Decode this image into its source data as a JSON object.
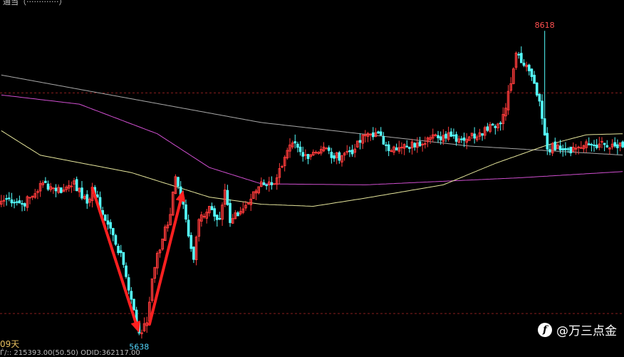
{
  "header": {
    "title_fragment": "通当（·············）"
  },
  "footer": {
    "period_label": "09天",
    "volume_text": "Ѓ/::  215393.00(50.50)  ODID:362117.00"
  },
  "watermark": {
    "logo_letter": "f",
    "text": "@万三点金"
  },
  "colors": {
    "background": "#000000",
    "up_candle": "#ff3b3b",
    "down_candle": "#54ffff",
    "ma_short": "#e6e69c",
    "ma_mid": "#d04fd0",
    "ma_long": "#a8a8a8",
    "ref_line": "#8a1e1e",
    "arrow": "#ff2020",
    "low_label": "#54d8ff",
    "high_label": "#ff5050"
  },
  "chart_data": {
    "type": "candlestick",
    "title": "",
    "xlabel": "",
    "ylabel": "",
    "ylim": [
      5585,
      8780
    ],
    "grid": false,
    "annotations": {
      "low": {
        "index": 53,
        "value": 5638,
        "label": "5638"
      },
      "high": {
        "index": 209,
        "value": 8618,
        "label": "8618"
      },
      "arrows": [
        {
          "from_index": 35,
          "from_value": 7080,
          "to_index": 53,
          "to_value": 5660
        },
        {
          "from_index": 57,
          "from_value": 5745,
          "to_index": 70,
          "to_value": 7060
        }
      ]
    },
    "reference_lines": [
      8010,
      5850
    ],
    "ma_lines": [
      {
        "key": "ma_long",
        "color": "#a8a8a8",
        "points": [
          [
            0,
            8185
          ],
          [
            100,
            7720
          ],
          [
            180,
            7490
          ],
          [
            240,
            7400
          ],
          [
            239,
            7400
          ]
        ]
      },
      {
        "key": "ma_mid",
        "color": "#d04fd0",
        "points": [
          [
            0,
            7990
          ],
          [
            30,
            7900
          ],
          [
            60,
            7610
          ],
          [
            80,
            7280
          ],
          [
            100,
            7120
          ],
          [
            140,
            7110
          ],
          [
            200,
            7180
          ],
          [
            239,
            7240
          ]
        ]
      },
      {
        "key": "ma_short",
        "color": "#e6e69c",
        "points": [
          [
            0,
            7640
          ],
          [
            15,
            7400
          ],
          [
            50,
            7230
          ],
          [
            80,
            6990
          ],
          [
            100,
            6920
          ],
          [
            120,
            6900
          ],
          [
            140,
            6980
          ],
          [
            170,
            7110
          ],
          [
            190,
            7320
          ],
          [
            210,
            7500
          ],
          [
            225,
            7600
          ],
          [
            239,
            7610
          ]
        ]
      }
    ],
    "anchors": [
      [
        0,
        6950
      ],
      [
        3,
        6980
      ],
      [
        8,
        6920
      ],
      [
        12,
        7000
      ],
      [
        16,
        7130
      ],
      [
        20,
        7080
      ],
      [
        24,
        7060
      ],
      [
        28,
        7150
      ],
      [
        31,
        6980
      ],
      [
        33,
        6930
      ],
      [
        35,
        7080
      ],
      [
        39,
        6820
      ],
      [
        43,
        6620
      ],
      [
        47,
        6330
      ],
      [
        50,
        5990
      ],
      [
        53,
        5660
      ],
      [
        56,
        5760
      ],
      [
        58,
        6190
      ],
      [
        60,
        6440
      ],
      [
        62,
        6580
      ],
      [
        65,
        6820
      ],
      [
        67,
        7190
      ],
      [
        70,
        6920
      ],
      [
        72,
        6610
      ],
      [
        74,
        6380
      ],
      [
        76,
        6770
      ],
      [
        80,
        6900
      ],
      [
        84,
        6780
      ],
      [
        86,
        7060
      ],
      [
        88,
        6740
      ],
      [
        92,
        6850
      ],
      [
        96,
        6970
      ],
      [
        100,
        7140
      ],
      [
        104,
        7110
      ],
      [
        108,
        7290
      ],
      [
        112,
        7520
      ],
      [
        116,
        7390
      ],
      [
        120,
        7430
      ],
      [
        124,
        7480
      ],
      [
        128,
        7370
      ],
      [
        132,
        7420
      ],
      [
        136,
        7460
      ],
      [
        140,
        7600
      ],
      [
        144,
        7620
      ],
      [
        148,
        7500
      ],
      [
        152,
        7450
      ],
      [
        156,
        7480
      ],
      [
        160,
        7520
      ],
      [
        164,
        7570
      ],
      [
        168,
        7570
      ],
      [
        172,
        7620
      ],
      [
        176,
        7560
      ],
      [
        180,
        7580
      ],
      [
        184,
        7620
      ],
      [
        188,
        7700
      ],
      [
        192,
        7710
      ],
      [
        196,
        8100
      ],
      [
        198,
        8400
      ],
      [
        201,
        8280
      ],
      [
        204,
        8170
      ],
      [
        207,
        7930
      ],
      [
        208,
        7760
      ],
      [
        210,
        7460
      ],
      [
        214,
        7500
      ],
      [
        218,
        7460
      ],
      [
        222,
        7480
      ],
      [
        226,
        7500
      ],
      [
        230,
        7510
      ],
      [
        234,
        7470
      ],
      [
        239,
        7480
      ]
    ],
    "candle_count": 240
  }
}
